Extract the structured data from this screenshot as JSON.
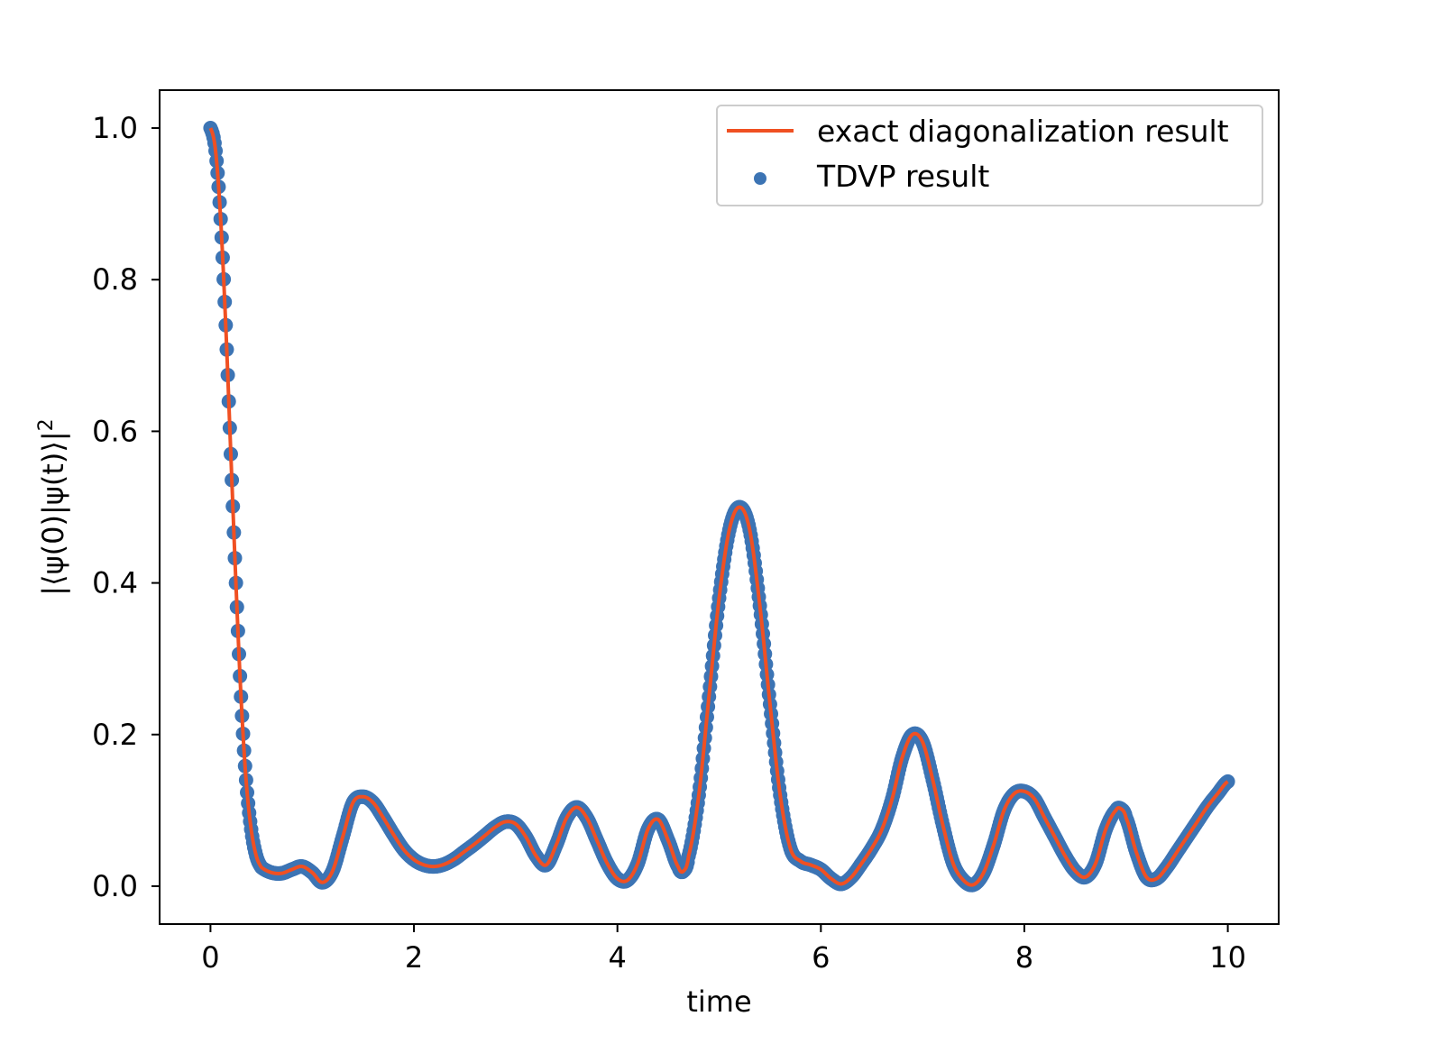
{
  "chart_data": {
    "type": "line",
    "xlabel": "time",
    "ylabel": "|⟨ψ(0)|ψ(t)⟩|²",
    "ylabel_parts": {
      "main": "|⟨ψ(0)|ψ(t)⟩|",
      "sup": "2"
    },
    "xlim": [
      -0.5,
      10.5
    ],
    "ylim": [
      -0.05,
      1.05
    ],
    "x_ticks": [
      0,
      2,
      4,
      6,
      8,
      10
    ],
    "x_tick_labels": [
      "0",
      "2",
      "4",
      "6",
      "8",
      "10"
    ],
    "y_ticks": [
      0.0,
      0.2,
      0.4,
      0.6,
      0.8,
      1.0
    ],
    "y_tick_labels": [
      "0.0",
      "0.2",
      "0.4",
      "0.6",
      "0.8",
      "1.0"
    ],
    "grid": false,
    "legend_position": "top-right",
    "series": [
      {
        "name": "exact diagonalization result",
        "kind": "line",
        "color": "#f05022"
      },
      {
        "name": "TDVP result",
        "kind": "scatter",
        "color": "#3c74b4"
      }
    ],
    "x": [
      0,
      0.05,
      0.1,
      0.15,
      0.2,
      0.25,
      0.3,
      0.35,
      0.4,
      0.45,
      0.5,
      0.6,
      0.7,
      0.8,
      0.9,
      1.0,
      1.1,
      1.2,
      1.3,
      1.4,
      1.5,
      1.6,
      1.7,
      1.8,
      1.9,
      2.0,
      2.1,
      2.2,
      2.3,
      2.4,
      2.5,
      2.6,
      2.7,
      2.8,
      2.9,
      3.0,
      3.1,
      3.2,
      3.3,
      3.4,
      3.5,
      3.6,
      3.7,
      3.8,
      3.9,
      4.0,
      4.1,
      4.2,
      4.3,
      4.4,
      4.5,
      4.6,
      4.65,
      4.7,
      4.8,
      4.9,
      5.0,
      5.1,
      5.2,
      5.3,
      5.4,
      5.5,
      5.6,
      5.7,
      5.8,
      5.9,
      6.0,
      6.1,
      6.2,
      6.3,
      6.4,
      6.5,
      6.6,
      6.7,
      6.8,
      6.9,
      7.0,
      7.1,
      7.2,
      7.3,
      7.4,
      7.5,
      7.6,
      7.7,
      7.8,
      7.9,
      8.0,
      8.1,
      8.2,
      8.3,
      8.4,
      8.5,
      8.6,
      8.7,
      8.8,
      8.9,
      8.95,
      9.0,
      9.1,
      9.2,
      9.3,
      9.4,
      9.5,
      9.6,
      9.7,
      9.8,
      9.9,
      10.0
    ],
    "y": [
      1.0,
      0.97,
      0.88,
      0.74,
      0.57,
      0.4,
      0.25,
      0.14,
      0.075,
      0.04,
      0.025,
      0.018,
      0.017,
      0.022,
      0.026,
      0.018,
      0.005,
      0.02,
      0.065,
      0.11,
      0.118,
      0.11,
      0.09,
      0.068,
      0.048,
      0.035,
      0.028,
      0.026,
      0.029,
      0.036,
      0.046,
      0.056,
      0.067,
      0.078,
      0.085,
      0.082,
      0.065,
      0.04,
      0.028,
      0.055,
      0.09,
      0.104,
      0.09,
      0.06,
      0.03,
      0.01,
      0.008,
      0.03,
      0.075,
      0.088,
      0.06,
      0.025,
      0.02,
      0.04,
      0.12,
      0.25,
      0.38,
      0.47,
      0.5,
      0.47,
      0.37,
      0.24,
      0.12,
      0.05,
      0.033,
      0.028,
      0.022,
      0.01,
      0.003,
      0.012,
      0.03,
      0.05,
      0.075,
      0.115,
      0.17,
      0.2,
      0.19,
      0.14,
      0.08,
      0.03,
      0.008,
      0.002,
      0.018,
      0.055,
      0.1,
      0.122,
      0.125,
      0.115,
      0.09,
      0.065,
      0.04,
      0.02,
      0.012,
      0.03,
      0.075,
      0.1,
      0.102,
      0.09,
      0.045,
      0.012,
      0.01,
      0.025,
      0.045,
      0.065,
      0.085,
      0.105,
      0.122,
      0.138
    ]
  }
}
